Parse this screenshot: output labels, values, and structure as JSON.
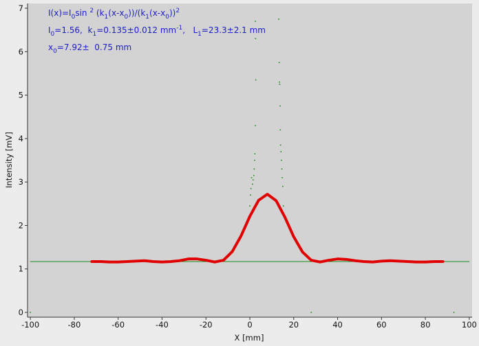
{
  "chart_data": {
    "type": "line",
    "xlabel": "X [mm]",
    "ylabel": "Intensity [mV]",
    "xlim": [
      -101.3,
      101.3
    ],
    "ylim": [
      -0.11,
      7.11
    ],
    "xticks": [
      -100,
      -80,
      -60,
      -40,
      -20,
      0,
      20,
      40,
      60,
      80,
      100
    ],
    "yticks": [
      0,
      1,
      2,
      3,
      4,
      5,
      6,
      7
    ],
    "background": "#d3d3d3",
    "annotations": [
      [
        "I(x)=I",
        {
          "sub": "0"
        },
        "sin ",
        {
          "sup": "2"
        },
        " (k",
        {
          "sub": "1"
        },
        "(x-x",
        {
          "sub": "0"
        },
        "))/(k",
        {
          "sub": "1"
        },
        "(x-x",
        {
          "sub": "0"
        },
        "))",
        {
          "sup": "2"
        }
      ],
      [
        "I",
        {
          "sub": "0"
        },
        "=1.56,  k",
        {
          "sub": "1"
        },
        "=0.135±0.012 mm",
        {
          "sup": "-1"
        },
        ",   L",
        {
          "sub": "1"
        },
        "=23.3±2.1 mm"
      ],
      [
        "x",
        {
          "sub": "0"
        },
        "=7.92±  0.75 mm"
      ]
    ],
    "series": [
      {
        "type": "line",
        "color": "#1a8a1a",
        "width": 1,
        "x": [
          -100,
          100
        ],
        "values": [
          1.17,
          1.17
        ]
      },
      {
        "type": "scatter",
        "color": "#1a8a1a",
        "x": [
          2.5,
          2.6,
          2.7,
          2.5,
          2.3,
          2.2,
          2.0,
          1.8,
          1.5,
          1.2,
          0.8,
          0.5,
          0.3,
          0.0,
          13.2,
          13.4,
          13.5,
          13.6,
          13.8,
          13.9,
          14.0,
          14.2,
          14.4,
          14.6,
          14.8,
          15.0,
          15.3,
          28,
          93,
          -100
        ],
        "values": [
          6.7,
          6.3,
          5.35,
          4.3,
          3.65,
          3.5,
          3.3,
          3.15,
          3.05,
          2.95,
          3.1,
          2.85,
          2.7,
          2.45,
          6.75,
          5.75,
          5.3,
          5.25,
          4.75,
          4.2,
          3.85,
          3.7,
          3.5,
          3.3,
          3.1,
          2.9,
          2.45,
          0.0,
          0.0,
          0.0
        ]
      },
      {
        "type": "line",
        "color": "#e00000",
        "width": 4,
        "x": [
          -72,
          -68,
          -64,
          -60,
          -56,
          -52,
          -48,
          -44,
          -40,
          -36,
          -32,
          -28,
          -24,
          -20,
          -16,
          -12,
          -8,
          -4,
          0,
          4,
          8,
          12,
          16,
          20,
          24,
          28,
          32,
          36,
          40,
          44,
          48,
          52,
          56,
          60,
          64,
          68,
          72,
          76,
          80,
          84,
          88
        ],
        "values": [
          1.17,
          1.17,
          1.16,
          1.16,
          1.17,
          1.18,
          1.19,
          1.17,
          1.16,
          1.17,
          1.19,
          1.23,
          1.23,
          1.2,
          1.16,
          1.2,
          1.4,
          1.76,
          2.21,
          2.58,
          2.72,
          2.57,
          2.19,
          1.74,
          1.39,
          1.2,
          1.16,
          1.2,
          1.23,
          1.22,
          1.19,
          1.17,
          1.16,
          1.18,
          1.19,
          1.18,
          1.17,
          1.16,
          1.16,
          1.17,
          1.17
        ]
      }
    ]
  }
}
